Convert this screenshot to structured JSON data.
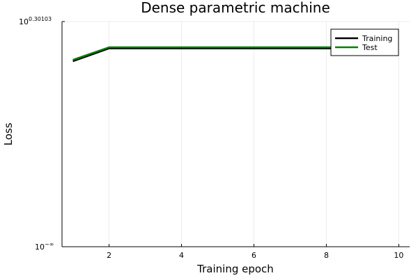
{
  "chart_data": {
    "type": "line",
    "title": "Dense parametric machine",
    "xlabel": "Training epoch",
    "ylabel": "Loss",
    "x": [
      1,
      2,
      3,
      4,
      5,
      6,
      7,
      8,
      9,
      10
    ],
    "xlim": [
      0.7,
      10.3
    ],
    "x_ticks": [
      2,
      4,
      6,
      8,
      10
    ],
    "y_scale": "log10",
    "y_ticks": [
      {
        "base": "10",
        "exp": "−∞"
      },
      {
        "base": "10",
        "exp": "0.30103"
      }
    ],
    "ylim_exp": [
      "-inf",
      0.30103
    ],
    "grid": true,
    "legend_position": "top-right",
    "series": [
      {
        "name": "Training",
        "color": "#000000",
        "values": [
          1.18,
          1.4,
          1.4,
          1.4,
          1.4,
          1.4,
          1.4,
          1.4,
          1.4,
          1.4
        ]
      },
      {
        "name": "Test",
        "color": "#008000",
        "values": [
          1.2,
          1.42,
          1.42,
          1.42,
          1.42,
          1.42,
          1.42,
          1.42,
          1.42,
          1.42
        ]
      }
    ]
  }
}
